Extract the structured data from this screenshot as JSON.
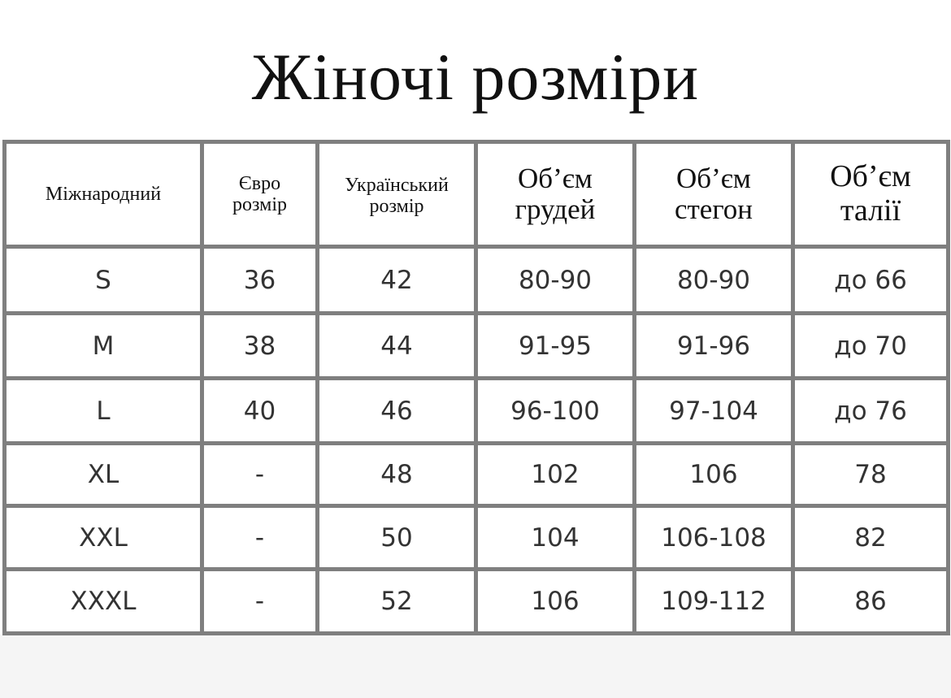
{
  "title": "Жіночі розміри",
  "headers": [
    [
      "Міжнародний"
    ],
    [
      "Євро",
      "розмір"
    ],
    [
      "Український",
      "розмір"
    ],
    [
      "Об’єм",
      "грудей"
    ],
    [
      "Об’єм",
      "стегон"
    ],
    [
      "Об’єм",
      "талії"
    ]
  ],
  "rows": [
    [
      "S",
      "36",
      "42",
      "80-90",
      "80-90",
      "до 66"
    ],
    [
      "M",
      "38",
      "44",
      "91-95",
      "91-96",
      "до 70"
    ],
    [
      "L",
      "40",
      "46",
      "96-100",
      "97-104",
      "до 76"
    ],
    [
      "XL",
      "-",
      "48",
      "102",
      "106",
      "78"
    ],
    [
      "XXL",
      "-",
      "50",
      "104",
      "106-108",
      "82"
    ],
    [
      "XXXL",
      "-",
      "52",
      "106",
      "109-112",
      "86"
    ]
  ]
}
